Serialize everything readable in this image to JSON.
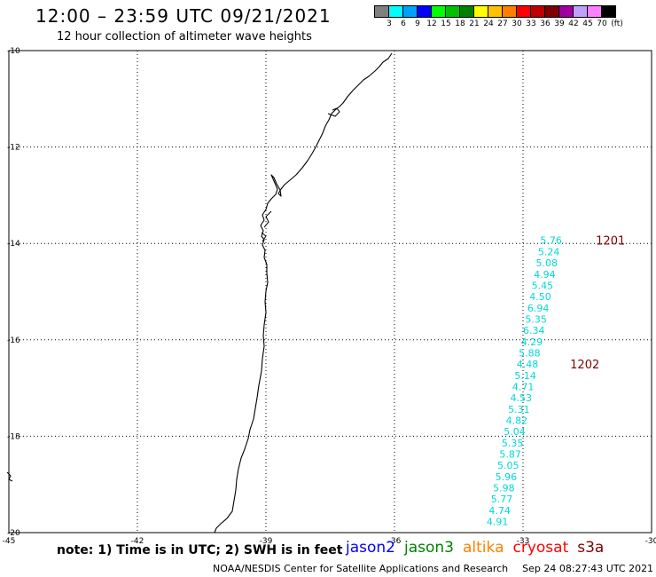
{
  "header": {
    "title": "12:00 – 23:59 UTC 09/21/2021",
    "subtitle": "12 hour collection of altimeter wave heights"
  },
  "legend": {
    "unit_label": "(ft)",
    "bins": [
      {
        "label": "3",
        "color": "#808080"
      },
      {
        "label": "6",
        "color": "#00ffff"
      },
      {
        "label": "9",
        "color": "#00a0ff"
      },
      {
        "label": "12",
        "color": "#0000ff"
      },
      {
        "label": "15",
        "color": "#00ff00"
      },
      {
        "label": "18",
        "color": "#00c000"
      },
      {
        "label": "21",
        "color": "#008000"
      },
      {
        "label": "24",
        "color": "#ffff00"
      },
      {
        "label": "27",
        "color": "#ffc000"
      },
      {
        "label": "30",
        "color": "#ff8000"
      },
      {
        "label": "33",
        "color": "#ff0000"
      },
      {
        "label": "36",
        "color": "#c00000"
      },
      {
        "label": "39",
        "color": "#800000"
      },
      {
        "label": "42",
        "color": "#a000a0"
      },
      {
        "label": "45",
        "color": "#c0a0ff"
      },
      {
        "label": "70",
        "color": "#ff80ff"
      },
      {
        "label": "",
        "color": "#000000"
      }
    ]
  },
  "map": {
    "lon_range": [
      -45,
      -30
    ],
    "lat_range": [
      -20,
      -10
    ],
    "lon_ticks": [
      "-45",
      "-42",
      "-39",
      "-36",
      "-33",
      "-30"
    ],
    "lat_ticks": [
      "-10",
      "-12",
      "-14",
      "-16",
      "-18",
      "-20"
    ],
    "coast_color": "#000000"
  },
  "track": {
    "color": "#00d8d8",
    "readings": [
      {
        "lon": -32.6,
        "lat": -13.95,
        "value": "5.76"
      },
      {
        "lon": -32.65,
        "lat": -14.19,
        "value": "5.24"
      },
      {
        "lon": -32.7,
        "lat": -14.42,
        "value": "5.08"
      },
      {
        "lon": -32.75,
        "lat": -14.66,
        "value": "4.94"
      },
      {
        "lon": -32.8,
        "lat": -14.89,
        "value": "5.45"
      },
      {
        "lon": -32.85,
        "lat": -15.12,
        "value": "4.50"
      },
      {
        "lon": -32.9,
        "lat": -15.36,
        "value": "6.94"
      },
      {
        "lon": -32.95,
        "lat": -15.59,
        "value": "5.35"
      },
      {
        "lon": -33.0,
        "lat": -15.82,
        "value": "6.34"
      },
      {
        "lon": -33.05,
        "lat": -16.06,
        "value": "4.29"
      },
      {
        "lon": -33.1,
        "lat": -16.29,
        "value": "5.88"
      },
      {
        "lon": -33.15,
        "lat": -16.52,
        "value": "4.48"
      },
      {
        "lon": -33.2,
        "lat": -16.76,
        "value": "5.14"
      },
      {
        "lon": -33.25,
        "lat": -16.99,
        "value": "4.71"
      },
      {
        "lon": -33.3,
        "lat": -17.22,
        "value": "4.53"
      },
      {
        "lon": -33.35,
        "lat": -17.46,
        "value": "5.31"
      },
      {
        "lon": -33.4,
        "lat": -17.69,
        "value": "4.82"
      },
      {
        "lon": -33.45,
        "lat": -17.92,
        "value": "5.04"
      },
      {
        "lon": -33.5,
        "lat": -18.16,
        "value": "5.35"
      },
      {
        "lon": -33.55,
        "lat": -18.39,
        "value": "5.87"
      },
      {
        "lon": -33.6,
        "lat": -18.62,
        "value": "5.05"
      },
      {
        "lon": -33.65,
        "lat": -18.86,
        "value": "5.96"
      },
      {
        "lon": -33.7,
        "lat": -19.09,
        "value": "5.98"
      },
      {
        "lon": -33.75,
        "lat": -19.32,
        "value": "5.77"
      },
      {
        "lon": -33.8,
        "lat": -19.56,
        "value": "4.74"
      },
      {
        "lon": -33.85,
        "lat": -19.79,
        "value": "4.91"
      }
    ],
    "time_labels": [
      {
        "lon": -31.3,
        "lat": -13.95,
        "text": "1201"
      },
      {
        "lon": -31.9,
        "lat": -16.52,
        "text": "1202"
      }
    ],
    "time_color": "#800000"
  },
  "footer": {
    "note": "note:  1) Time is in UTC;  2) SWH is in feet",
    "satellites": [
      {
        "name": "jason2",
        "color": "#0000ff"
      },
      {
        "name": "jason3",
        "color": "#008000"
      },
      {
        "name": "altika",
        "color": "#ff8000"
      },
      {
        "name": "cryosat",
        "color": "#ff0000"
      },
      {
        "name": "s3a",
        "color": "#800000"
      }
    ],
    "credit": "NOAA/NESDIS Center for Satellite Applications and Research",
    "timestamp": "Sep 24 08:27:43 UTC 2021"
  }
}
